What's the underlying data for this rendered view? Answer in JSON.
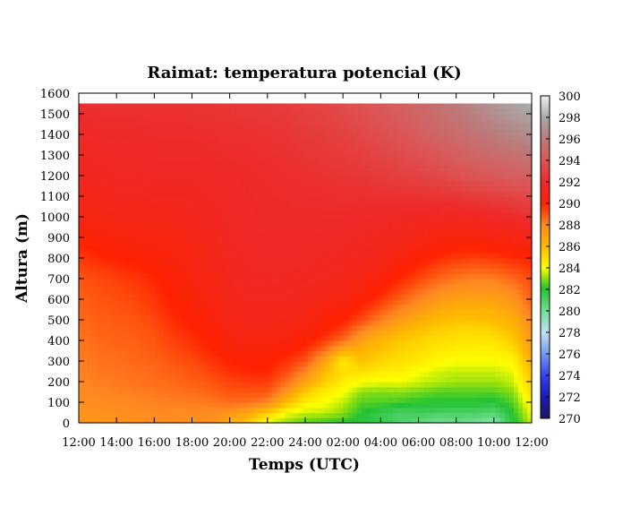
{
  "chart_data": {
    "type": "heatmap",
    "title": "Raimat: temperatura potencial (K)",
    "xlabel": "Temps (UTC)",
    "ylabel": "Altura (m)",
    "x_tick_labels": [
      "12:00",
      "14:00",
      "16:00",
      "18:00",
      "20:00",
      "22:00",
      "24:00",
      "02:00",
      "04:00",
      "06:00",
      "08:00",
      "10:00",
      "12:00"
    ],
    "x_hours": [
      0,
      24
    ],
    "y_ticks": [
      0,
      100,
      200,
      300,
      400,
      500,
      600,
      700,
      800,
      900,
      1000,
      1100,
      1200,
      1300,
      1400,
      1500,
      1600
    ],
    "ylim": [
      0,
      1600
    ],
    "data_top": 1550,
    "colorbar": {
      "range": [
        270,
        300
      ],
      "ticks": [
        270,
        272,
        274,
        276,
        278,
        280,
        282,
        284,
        286,
        288,
        290,
        292,
        294,
        296,
        298,
        300
      ],
      "stops": [
        {
          "value": 270,
          "color": "#1a1a5e"
        },
        {
          "value": 272,
          "color": "#1a1ab8"
        },
        {
          "value": 274,
          "color": "#3344ee"
        },
        {
          "value": 276,
          "color": "#7799ee"
        },
        {
          "value": 278,
          "color": "#bfe0f0"
        },
        {
          "value": 280,
          "color": "#77dd99"
        },
        {
          "value": 282,
          "color": "#22c233"
        },
        {
          "value": 283,
          "color": "#88dd11"
        },
        {
          "value": 284,
          "color": "#ffff00"
        },
        {
          "value": 286,
          "color": "#ffbb00"
        },
        {
          "value": 288,
          "color": "#ff8822"
        },
        {
          "value": 290,
          "color": "#ff2200"
        },
        {
          "value": 292,
          "color": "#ee2a2a"
        },
        {
          "value": 294,
          "color": "#dd5555"
        },
        {
          "value": 296,
          "color": "#bb7b7b"
        },
        {
          "value": 298,
          "color": "#a8a8a8"
        },
        {
          "value": 300,
          "color": "#f2f2f2"
        }
      ]
    },
    "field": {
      "time_hours": [
        0,
        1,
        2,
        3,
        4,
        5,
        6,
        7,
        8,
        9,
        10,
        11,
        12,
        13,
        14,
        15,
        16,
        17,
        18,
        19,
        20,
        21,
        22,
        23,
        24
      ],
      "heights_m": [
        0,
        50,
        100,
        150,
        200,
        250,
        300,
        350,
        400,
        450,
        500,
        600,
        700,
        800,
        900,
        1000,
        1200,
        1400,
        1550
      ],
      "theta_K": [
        [
          287.4,
          287.5,
          287.6,
          287.7,
          287.8,
          287.8,
          287.7,
          287.6,
          286.5,
          285.5,
          283.5,
          283.0,
          282.5,
          282.2,
          282.0,
          281.8,
          281.5,
          281.0,
          280.5,
          280.0,
          280.2,
          280.0,
          279.5,
          281.8,
          283.5
        ],
        [
          287.5,
          287.6,
          287.7,
          287.8,
          287.9,
          287.9,
          287.9,
          287.9,
          287.5,
          286.8,
          285.5,
          284.0,
          283.5,
          283.5,
          283.0,
          282.0,
          281.5,
          281.0,
          281.3,
          281.1,
          281.0,
          281.0,
          280.8,
          282.0,
          284.0
        ],
        [
          287.7,
          287.8,
          287.9,
          288.0,
          288.1,
          288.2,
          288.2,
          288.3,
          288.5,
          288.5,
          288.0,
          286.0,
          284.5,
          284.0,
          283.5,
          282.5,
          282.5,
          282.3,
          282.0,
          282.0,
          282.0,
          282.0,
          281.8,
          282.5,
          284.5
        ],
        [
          287.9,
          288.0,
          288.1,
          288.2,
          288.3,
          288.4,
          288.5,
          288.7,
          289.0,
          289.0,
          289.0,
          287.5,
          285.5,
          284.5,
          284.0,
          283.0,
          282.9,
          283.0,
          282.8,
          282.5,
          282.5,
          282.5,
          282.5,
          283.0,
          285.0
        ],
        [
          288.0,
          288.2,
          288.3,
          288.4,
          288.5,
          288.6,
          288.8,
          289.0,
          289.3,
          289.5,
          289.5,
          288.5,
          287.0,
          285.5,
          284.5,
          284.0,
          283.9,
          283.9,
          283.6,
          283.4,
          283.2,
          283.2,
          283.2,
          283.5,
          285.5
        ],
        [
          288.1,
          288.3,
          288.4,
          288.5,
          288.6,
          288.8,
          289.0,
          289.3,
          289.7,
          289.9,
          289.9,
          289.2,
          288.0,
          286.0,
          285.0,
          284.9,
          284.5,
          284.4,
          284.0,
          283.6,
          283.5,
          283.5,
          283.5,
          283.8,
          286.0
        ],
        [
          288.2,
          288.4,
          288.5,
          288.6,
          288.7,
          289.0,
          289.2,
          289.6,
          290.0,
          290.2,
          290.1,
          289.7,
          289.0,
          287.0,
          284.5,
          285.8,
          285.2,
          284.9,
          284.6,
          284.2,
          284.0,
          284.0,
          284.0,
          284.2,
          286.5
        ],
        [
          288.3,
          288.5,
          288.6,
          288.7,
          288.9,
          289.2,
          289.5,
          289.9,
          290.3,
          290.5,
          290.4,
          290.2,
          289.6,
          288.5,
          286.5,
          286.2,
          285.7,
          285.3,
          285.0,
          284.6,
          284.4,
          284.4,
          284.4,
          284.8,
          287.0
        ],
        [
          288.4,
          288.6,
          288.7,
          288.8,
          289.0,
          289.4,
          289.7,
          290.1,
          290.6,
          290.8,
          290.8,
          290.6,
          290.2,
          289.5,
          288.5,
          287.0,
          286.2,
          285.7,
          285.3,
          285.0,
          284.8,
          284.7,
          284.8,
          285.5,
          287.3
        ],
        [
          288.5,
          288.7,
          288.8,
          288.9,
          289.1,
          289.6,
          289.9,
          290.3,
          290.8,
          291.0,
          291.0,
          290.9,
          290.6,
          290.1,
          289.4,
          288.0,
          287.0,
          286.3,
          285.8,
          285.4,
          285.2,
          285.1,
          285.3,
          286.0,
          287.6
        ],
        [
          288.6,
          288.8,
          288.9,
          289.0,
          289.3,
          289.8,
          290.1,
          290.5,
          291.0,
          291.2,
          291.2,
          291.1,
          290.9,
          290.5,
          290.0,
          289.2,
          288.2,
          287.3,
          286.6,
          286.1,
          285.8,
          285.8,
          286.0,
          286.5,
          288.0
        ],
        [
          288.8,
          289.0,
          289.1,
          289.3,
          289.6,
          290.1,
          290.4,
          290.8,
          291.2,
          291.4,
          291.4,
          291.4,
          291.3,
          291.0,
          290.8,
          290.3,
          289.6,
          288.8,
          288.0,
          287.4,
          287.0,
          286.9,
          287.0,
          287.5,
          288.8
        ],
        [
          289.0,
          289.2,
          289.4,
          289.6,
          289.9,
          290.3,
          290.7,
          291.0,
          291.4,
          291.6,
          291.6,
          291.6,
          291.5,
          291.4,
          291.3,
          291.0,
          290.5,
          289.9,
          289.3,
          288.7,
          288.3,
          288.1,
          288.2,
          288.6,
          289.2
        ],
        [
          289.5,
          289.8,
          290.0,
          290.2,
          290.4,
          290.6,
          290.9,
          291.2,
          291.5,
          291.7,
          291.8,
          291.8,
          291.7,
          291.6,
          291.5,
          291.3,
          291.1,
          290.7,
          290.2,
          289.8,
          289.5,
          289.4,
          289.5,
          289.8,
          289.9
        ],
        [
          290.2,
          290.5,
          290.6,
          290.7,
          290.8,
          290.9,
          291.1,
          291.3,
          291.6,
          291.8,
          291.9,
          291.9,
          291.9,
          291.8,
          291.7,
          291.6,
          291.5,
          291.3,
          291.0,
          290.8,
          290.6,
          290.6,
          290.8,
          291.0,
          291.2
        ],
        [
          290.8,
          291.0,
          291.1,
          291.1,
          291.2,
          291.2,
          291.3,
          291.5,
          291.7,
          291.9,
          292.0,
          292.0,
          292.0,
          292.0,
          292.0,
          291.9,
          291.8,
          291.7,
          291.6,
          291.5,
          291.5,
          291.6,
          291.8,
          292.0,
          292.3
        ],
        [
          291.3,
          291.5,
          291.6,
          291.6,
          291.7,
          291.7,
          291.7,
          291.8,
          291.9,
          292.0,
          292.1,
          292.2,
          292.3,
          292.4,
          292.5,
          292.6,
          292.8,
          293.0,
          293.2,
          293.4,
          293.7,
          294.0,
          294.2,
          294.4,
          294.6
        ],
        [
          291.8,
          292.0,
          292.0,
          292.0,
          292.1,
          292.1,
          292.1,
          292.2,
          292.3,
          292.3,
          292.4,
          292.5,
          292.7,
          292.9,
          293.1,
          293.4,
          293.7,
          294.0,
          294.4,
          294.8,
          295.2,
          295.6,
          296.0,
          296.4,
          296.8
        ],
        [
          292.2,
          292.3,
          292.3,
          292.4,
          292.4,
          292.4,
          292.5,
          292.5,
          292.6,
          292.7,
          292.8,
          292.9,
          293.1,
          293.3,
          293.6,
          293.9,
          294.2,
          294.6,
          295.0,
          295.5,
          296.0,
          296.6,
          297.2,
          297.8,
          298.3
        ]
      ]
    }
  }
}
